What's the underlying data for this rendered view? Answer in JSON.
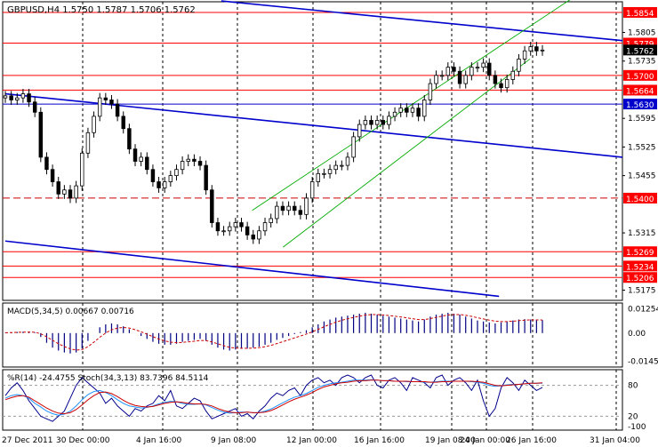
{
  "chart_data": [
    {
      "type": "candlestick",
      "title": "GBPUSD,H4  1.5750 1.5787 1.5706 1.5762",
      "ylim": [
        1.515,
        1.588
      ],
      "y_ticks": [
        "1.5805",
        "1.5735",
        "1.5595",
        "1.5525",
        "1.5455",
        "1.5315",
        "1.5175"
      ],
      "x_ticks": [
        "27 Dec 2011",
        "30 Dec 00:00",
        "4 Jan 16:00",
        "9 Jan 08:00",
        "12 Jan 00:00",
        "16 Jan 16:00",
        "19 Jan 08:00",
        "24 Jan 00:00",
        "26 Jan 16:00",
        "31 Jan 04:00"
      ],
      "levels": [
        {
          "value": 1.5854,
          "label": "1.5854",
          "style": "solid",
          "color": "#ff0000",
          "tag_color": "#ff0000"
        },
        {
          "value": 1.5779,
          "label": "1.5779",
          "style": "solid",
          "color": "#ff0000",
          "tag_color": "#ff0000"
        },
        {
          "value": 1.57,
          "label": "1.5700",
          "style": "solid",
          "color": "#ff0000",
          "tag_color": "#ff0000"
        },
        {
          "value": 1.5664,
          "label": "1.5664",
          "style": "solid",
          "color": "#ff0000",
          "tag_color": "#ff0000"
        },
        {
          "value": 1.563,
          "label": "1.5630",
          "style": "solid",
          "color": "#0000cc",
          "tag_color": "#0000cc"
        },
        {
          "value": 1.54,
          "label": "1.5400",
          "style": "dashed",
          "color": "#cc0000",
          "tag_color": "#ff0000"
        },
        {
          "value": 1.5269,
          "label": "1.5269",
          "style": "solid",
          "color": "#ff0000",
          "tag_color": "#ff0000"
        },
        {
          "value": 1.5234,
          "label": "1.5234",
          "style": "solid",
          "color": "#ff0000",
          "tag_color": "#ff0000"
        },
        {
          "value": 1.5206,
          "label": "1.5206",
          "style": "solid",
          "color": "#ff0000",
          "tag_color": "#ff0000"
        }
      ],
      "current_price": "1.5762",
      "close_series": [
        1.565,
        1.564,
        1.5645,
        1.5655,
        1.5635,
        1.561,
        1.55,
        1.547,
        1.544,
        1.541,
        1.542,
        1.54,
        1.543,
        1.551,
        1.556,
        1.56,
        1.5645,
        1.564,
        1.563,
        1.56,
        1.557,
        1.552,
        1.549,
        1.55,
        1.547,
        1.544,
        1.5425,
        1.544,
        1.5455,
        1.547,
        1.549,
        1.5495,
        1.549,
        1.548,
        1.542,
        1.534,
        1.532,
        1.532,
        1.533,
        1.534,
        1.533,
        1.531,
        1.53,
        1.532,
        1.534,
        1.535,
        1.538,
        1.537,
        1.538,
        1.537,
        1.536,
        1.54,
        1.544,
        1.546,
        1.546,
        1.547,
        1.548,
        1.548,
        1.55,
        1.555,
        1.558,
        1.559,
        1.558,
        1.559,
        1.558,
        1.56,
        1.561,
        1.562,
        1.561,
        1.562,
        1.56,
        1.564,
        1.568,
        1.57,
        1.57,
        1.572,
        1.571,
        1.568,
        1.57,
        1.572,
        1.572,
        1.573,
        1.57,
        1.568,
        1.567,
        1.569,
        1.571,
        1.574,
        1.576,
        1.577,
        1.576,
        1.5762
      ],
      "trend_lines": [
        {
          "points": [
            [
              0.35,
              1.5882
            ],
            [
              1.0,
              1.5785
            ]
          ],
          "color": "#0000cc"
        },
        {
          "points": [
            [
              0.0,
              1.5655
            ],
            [
              1.0,
              1.55
            ]
          ],
          "color": "#0000cc"
        },
        {
          "points": [
            [
              0.0,
              1.5295
            ],
            [
              0.8,
              1.516
            ]
          ],
          "color": "#0000cc"
        },
        {
          "points": [
            [
              0.4,
              1.537
            ],
            [
              0.93,
              1.59
            ]
          ],
          "color": "#00aa00"
        },
        {
          "points": [
            [
              0.45,
              1.528
            ],
            [
              0.85,
              1.574
            ]
          ],
          "color": "#00aa00"
        }
      ]
    },
    {
      "type": "bar",
      "title": "MACD(5,34,5) 0.00667 0.00716",
      "y_ticks": [
        "0.01254",
        "0.00",
        "-0.01450"
      ],
      "ylim": [
        -0.0175,
        0.0155
      ],
      "values": [
        0.0002,
        0.0004,
        0.0006,
        0.0007,
        0.0006,
        0.0003,
        -0.002,
        -0.005,
        -0.0075,
        -0.009,
        -0.01,
        -0.0105,
        -0.01,
        -0.008,
        -0.004,
        0.0,
        0.003,
        0.0045,
        0.005,
        0.0045,
        0.0035,
        0.002,
        0.0,
        -0.0015,
        -0.003,
        -0.0045,
        -0.0055,
        -0.006,
        -0.006,
        -0.0055,
        -0.0045,
        -0.004,
        -0.0035,
        -0.003,
        -0.004,
        -0.006,
        -0.0075,
        -0.0085,
        -0.009,
        -0.0085,
        -0.008,
        -0.008,
        -0.0075,
        -0.007,
        -0.006,
        -0.005,
        -0.0035,
        -0.0025,
        -0.0015,
        -0.0005,
        0.0005,
        0.0015,
        0.003,
        0.0045,
        0.006,
        0.007,
        0.008,
        0.0085,
        0.009,
        0.0095,
        0.01,
        0.0105,
        0.01,
        0.0095,
        0.009,
        0.0085,
        0.008,
        0.0075,
        0.007,
        0.0065,
        0.006,
        0.007,
        0.0085,
        0.0095,
        0.01,
        0.0105,
        0.01,
        0.0095,
        0.0085,
        0.0075,
        0.0065,
        0.006,
        0.0055,
        0.005,
        0.0055,
        0.006,
        0.0065,
        0.007,
        0.0072,
        0.007,
        0.0068,
        0.0067
      ],
      "signal_color": "#cc0000",
      "bar_color": "#000080"
    },
    {
      "type": "line",
      "title": "%R(14) -24.4755  Stoch(34,3,13) 83.7396 84.5114",
      "y_ticks": [
        "80",
        "20",
        "-100"
      ],
      "ylim": [
        0,
        100
      ],
      "series": [
        {
          "values": [
            60,
            75,
            85,
            70,
            50,
            35,
            20,
            15,
            10,
            20,
            30,
            55,
            80,
            95,
            85,
            75,
            65,
            45,
            55,
            40,
            30,
            20,
            35,
            30,
            40,
            45,
            60,
            50,
            70,
            40,
            35,
            45,
            55,
            50,
            30,
            15,
            20,
            25,
            30,
            35,
            20,
            25,
            15,
            30,
            40,
            55,
            65,
            60,
            70,
            75,
            60,
            80,
            90,
            95,
            85,
            90,
            80,
            95,
            100,
            95,
            85,
            95,
            100,
            80,
            75,
            90,
            95,
            85,
            70,
            95,
            90,
            85,
            75,
            95,
            100,
            80,
            90,
            95,
            85,
            70,
            90,
            50,
            20,
            35,
            75,
            95,
            85,
            70,
            90,
            80,
            70,
            76
          ],
          "color": "#00008b"
        },
        {
          "values": [
            55,
            60,
            62,
            60,
            55,
            45,
            38,
            30,
            25,
            22,
            24,
            30,
            40,
            52,
            62,
            68,
            70,
            66,
            60,
            52,
            45,
            40,
            38,
            36,
            37,
            40,
            44,
            47,
            49,
            48,
            45,
            43,
            43,
            44,
            42,
            37,
            32,
            28,
            26,
            27,
            28,
            28,
            27,
            27,
            30,
            34,
            40,
            46,
            52,
            57,
            60,
            64,
            70,
            76,
            80,
            83,
            85,
            86,
            88,
            90,
            90,
            90,
            91,
            90,
            89,
            89,
            88,
            88,
            87,
            87,
            87,
            86,
            86,
            87,
            88,
            88,
            88,
            88,
            88,
            87,
            86,
            84,
            80,
            78,
            79,
            81,
            82,
            82,
            83,
            84,
            84,
            84
          ],
          "color": "#1e90ff"
        },
        {
          "values": [
            52,
            56,
            59,
            60,
            57,
            50,
            43,
            36,
            30,
            26,
            25,
            27,
            33,
            42,
            52,
            60,
            66,
            67,
            64,
            58,
            51,
            45,
            41,
            39,
            38,
            39,
            42,
            45,
            47,
            48,
            47,
            45,
            44,
            44,
            43,
            40,
            35,
            31,
            28,
            27,
            27,
            28,
            27,
            27,
            28,
            31,
            36,
            42,
            48,
            53,
            57,
            61,
            66,
            72,
            77,
            80,
            83,
            85,
            86,
            88,
            89,
            89,
            90,
            90,
            89,
            89,
            88,
            88,
            88,
            87,
            87,
            87,
            86,
            86,
            87,
            87,
            88,
            88,
            88,
            88,
            87,
            86,
            83,
            80,
            79,
            80,
            81,
            82,
            83,
            84,
            84,
            85
          ],
          "color": "#cc0000"
        }
      ]
    }
  ]
}
